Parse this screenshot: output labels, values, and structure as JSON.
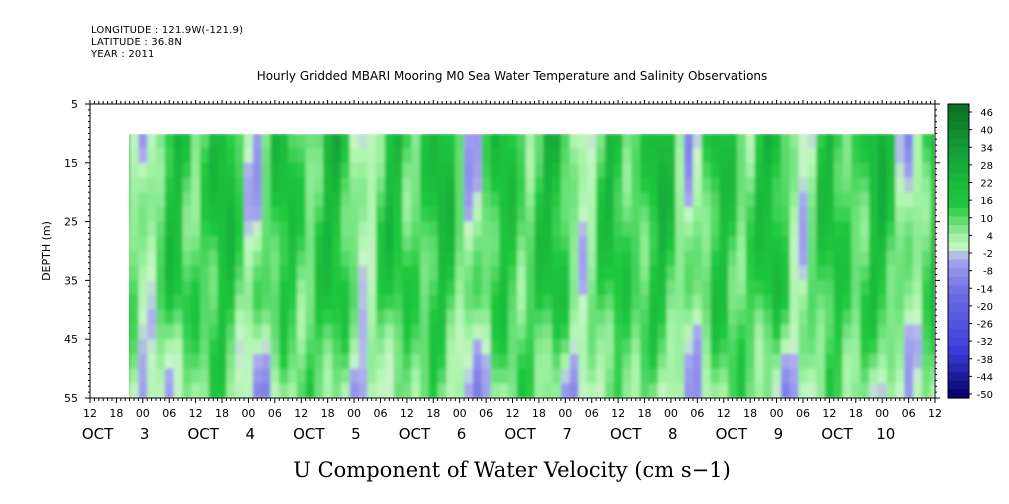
{
  "header": {
    "longitude": "LONGITUDE : 121.9W(-121.9)",
    "latitude": "LATITUDE : 36.8N",
    "year": "YEAR : 2011"
  },
  "chart_data": {
    "type": "heatmap",
    "title": "Hourly Gridded MBARI Mooring M0 Sea Water Temperature and Salinity Observations",
    "xlabel": "U Component of Water Velocity (cm s−1)",
    "ylabel": "DEPTH (m)",
    "y_axis": {
      "range": [
        5,
        55
      ],
      "inverted": true,
      "ticks": [
        "5",
        "15",
        "25",
        "35",
        "45",
        "55"
      ]
    },
    "x_axis": {
      "hour_ticks": [
        "12",
        "18",
        "00",
        "06",
        "12",
        "18",
        "00",
        "06",
        "12",
        "18",
        "00",
        "06",
        "12",
        "18",
        "00",
        "06",
        "12",
        "18",
        "00",
        "06",
        "12",
        "18",
        "00",
        "06",
        "12",
        "18",
        "00",
        "06",
        "12",
        "18",
        "00",
        "06",
        "12"
      ],
      "day_labels": [
        {
          "month": "OCT",
          "day": "3"
        },
        {
          "month": "OCT",
          "day": "4"
        },
        {
          "month": "OCT",
          "day": "5"
        },
        {
          "month": "OCT",
          "day": "6"
        },
        {
          "month": "OCT",
          "day": "7"
        },
        {
          "month": "OCT",
          "day": "8"
        },
        {
          "month": "OCT",
          "day": "9"
        },
        {
          "month": "OCT",
          "day": "10"
        }
      ],
      "range": [
        "2011-10-02 12:00",
        "2011-10-10 12:00"
      ],
      "data_range": [
        "2011-10-02 19:00",
        "2011-10-10 12:00"
      ]
    },
    "depth_range_of_data": [
      10,
      55
    ],
    "colorbar": {
      "labels": [
        "46",
        "40",
        "34",
        "28",
        "22",
        "16",
        "10",
        "4",
        "-2",
        "-8",
        "-14",
        "-20",
        "-26",
        "-32",
        "-38",
        "-44",
        "-50"
      ],
      "min": -50,
      "max": 50,
      "colors": {
        "dark_green": "#0a6e1e",
        "green": "#1ec83c",
        "light_green": "#aaf5aa",
        "lavender": "#aaaaf0",
        "blue": "#3c3cdc",
        "dark_blue": "#000064"
      }
    },
    "grid": false,
    "legend": "colorbar-right"
  }
}
